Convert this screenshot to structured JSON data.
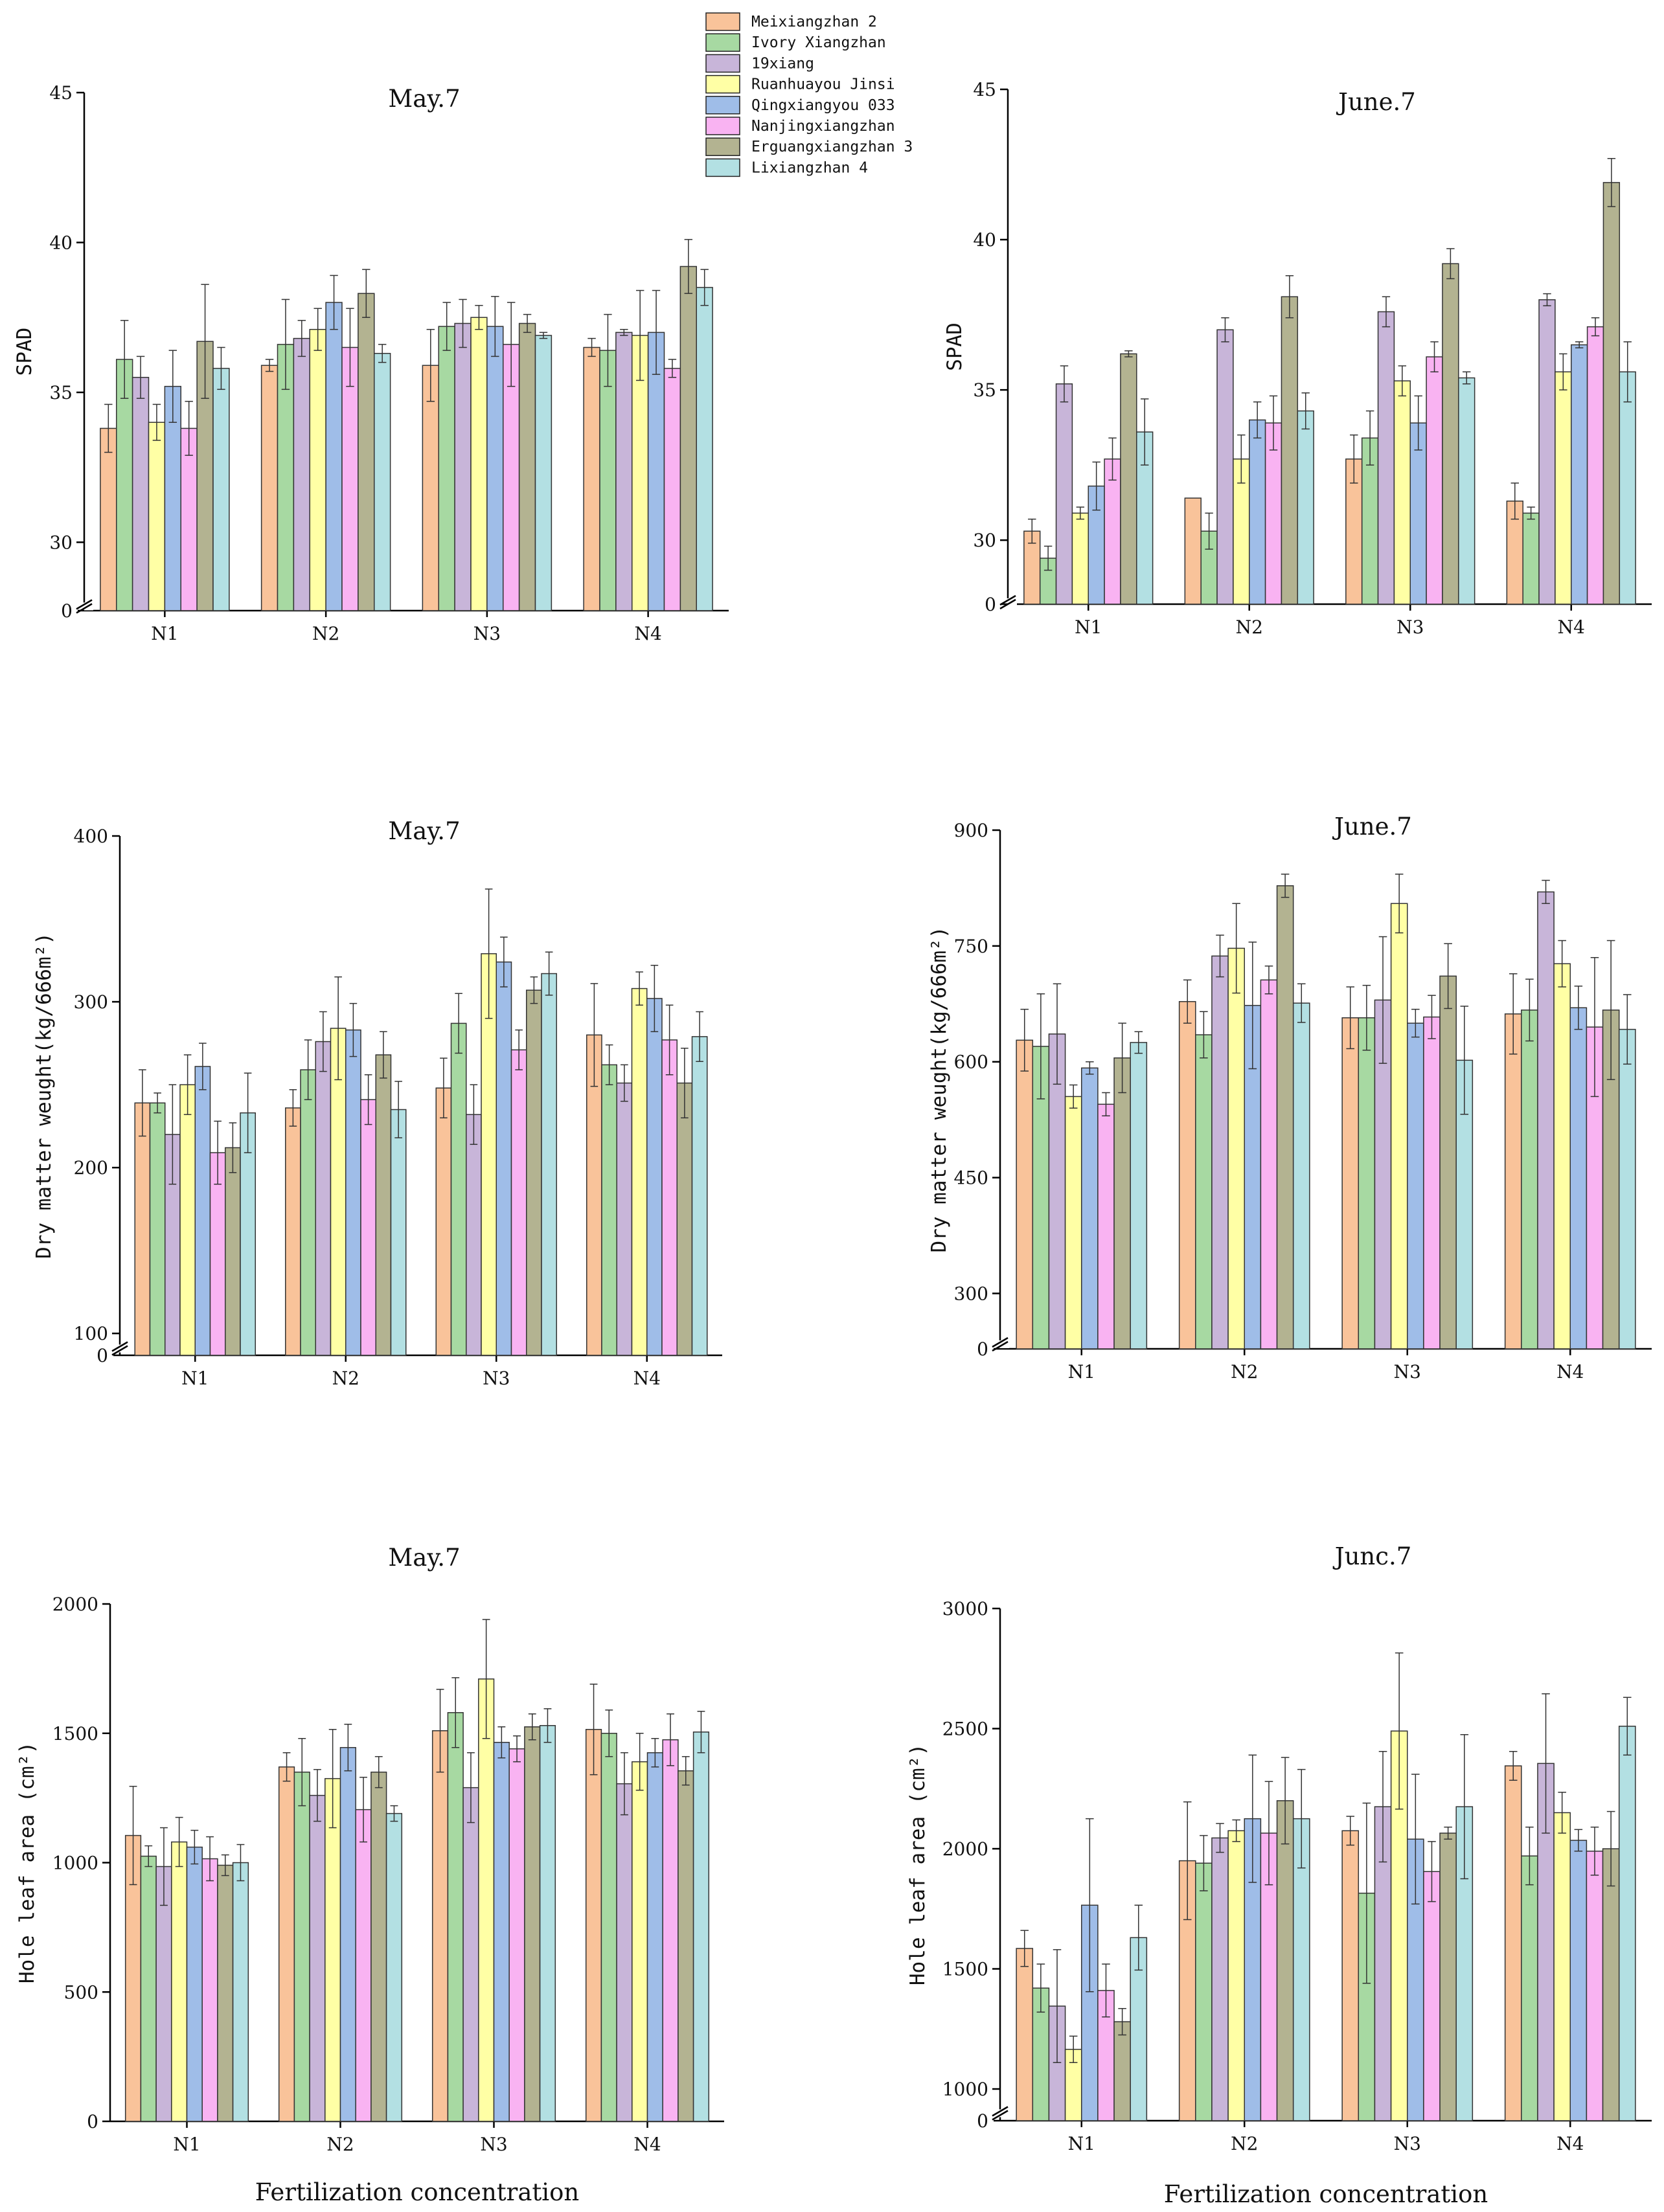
{
  "legend": [
    {
      "name": "Meixiangzhan 2",
      "color": "#f9c39a"
    },
    {
      "name": "Ivory Xiangzhan",
      "color": "#a7d9a2"
    },
    {
      "name": "19xiang",
      "color": "#c8b5d9"
    },
    {
      "name": "Ruanhuayou Jinsi",
      "color": "#ffffa5"
    },
    {
      "name": "Qingxiangyou 033",
      "color": "#9fbde8"
    },
    {
      "name": "Nanjingxiangzhan",
      "color": "#f9b3f2"
    },
    {
      "name": "Erguangxiangzhan 3",
      "color": "#b3b391"
    },
    {
      "name": "Lixiangzhan 4",
      "color": "#b3e0e3"
    }
  ],
  "chart_data": [
    {
      "type": "bar",
      "title": "May.7",
      "ylabel": "SPAD",
      "xlabel": "",
      "categories": [
        "N1",
        "N2",
        "N3",
        "N4"
      ],
      "ylim": [
        28,
        45
      ],
      "y_break": true,
      "yticks": [
        30,
        35,
        40,
        45
      ],
      "tick_labels": [
        "30",
        "35",
        "40",
        "45"
      ],
      "zero_label": "0",
      "series": [
        {
          "name": "Meixiangzhan 2",
          "values": [
            33.8,
            35.9,
            35.9,
            36.5
          ],
          "errors": [
            0.8,
            0.2,
            1.2,
            0.3
          ]
        },
        {
          "name": "Ivory Xiangzhan",
          "values": [
            36.1,
            36.6,
            37.2,
            36.4
          ],
          "errors": [
            1.3,
            1.5,
            0.8,
            1.2
          ]
        },
        {
          "name": "19xiang",
          "values": [
            35.5,
            36.8,
            37.3,
            37.0
          ],
          "errors": [
            0.7,
            0.6,
            0.8,
            0.1
          ]
        },
        {
          "name": "Ruanhuayou Jinsi",
          "values": [
            34.0,
            37.1,
            37.5,
            36.9
          ],
          "errors": [
            0.6,
            0.7,
            0.4,
            1.5
          ]
        },
        {
          "name": "Qingxiangyou 033",
          "values": [
            35.2,
            38.0,
            37.2,
            37.0
          ],
          "errors": [
            1.2,
            0.9,
            1.0,
            1.4
          ]
        },
        {
          "name": "Nanjingxiangzhan",
          "values": [
            33.8,
            36.5,
            36.6,
            35.8
          ],
          "errors": [
            0.9,
            1.3,
            1.4,
            0.3
          ]
        },
        {
          "name": "Erguangxiangzhan 3",
          "values": [
            36.7,
            38.3,
            37.3,
            39.2
          ],
          "errors": [
            1.9,
            0.8,
            0.3,
            0.9
          ]
        },
        {
          "name": "Lixiangzhan 4",
          "values": [
            35.8,
            36.3,
            36.9,
            38.5
          ],
          "errors": [
            0.7,
            0.3,
            0.1,
            0.6
          ]
        }
      ]
    },
    {
      "type": "bar",
      "title": "June.7",
      "ylabel": "SPAD",
      "xlabel": "",
      "categories": [
        "N1",
        "N2",
        "N3",
        "N4"
      ],
      "ylim": [
        28,
        45
      ],
      "y_break": true,
      "yticks": [
        30,
        35,
        40,
        45
      ],
      "tick_labels": [
        "30",
        "35",
        "40",
        "45"
      ],
      "zero_label": "0",
      "series": [
        {
          "name": "Meixiangzhan 2",
          "values": [
            30.3,
            31.4,
            32.7,
            31.3
          ],
          "errors": [
            0.4,
            0.0,
            0.8,
            0.6
          ]
        },
        {
          "name": "Ivory Xiangzhan",
          "values": [
            29.4,
            30.3,
            33.4,
            30.9
          ],
          "errors": [
            0.4,
            0.6,
            0.9,
            0.2
          ]
        },
        {
          "name": "19xiang",
          "values": [
            35.2,
            37.0,
            37.6,
            38.0
          ],
          "errors": [
            0.6,
            0.4,
            0.5,
            0.2
          ]
        },
        {
          "name": "Ruanhuayou Jinsi",
          "values": [
            30.9,
            32.7,
            35.3,
            35.6
          ],
          "errors": [
            0.2,
            0.8,
            0.5,
            0.6
          ]
        },
        {
          "name": "Qingxiangyou 033",
          "values": [
            31.8,
            34.0,
            33.9,
            36.5
          ],
          "errors": [
            0.8,
            0.6,
            0.9,
            0.1
          ]
        },
        {
          "name": "Nanjingxiangzhan",
          "values": [
            32.7,
            33.9,
            36.1,
            37.1
          ],
          "errors": [
            0.7,
            0.9,
            0.5,
            0.3
          ]
        },
        {
          "name": "Erguangxiangzhan 3",
          "values": [
            36.2,
            38.1,
            39.2,
            41.9
          ],
          "errors": [
            0.1,
            0.7,
            0.5,
            0.8
          ]
        },
        {
          "name": "Lixiangzhan 4",
          "values": [
            33.6,
            34.3,
            35.4,
            35.6
          ],
          "errors": [
            1.1,
            0.6,
            0.2,
            1.0
          ]
        }
      ]
    },
    {
      "type": "bar",
      "title": "May.7",
      "ylabel": "Dry matter weught(kg/666m²)",
      "xlabel": "",
      "categories": [
        "N1",
        "N2",
        "N3",
        "N4"
      ],
      "ylim": [
        95,
        400
      ],
      "y_break": true,
      "yticks": [
        100,
        200,
        300,
        400
      ],
      "tick_labels": [
        "100",
        "200",
        "300",
        "400"
      ],
      "zero_label": "0",
      "series": [
        {
          "name": "Meixiangzhan 2",
          "values": [
            239,
            236,
            248,
            280
          ],
          "errors": [
            20,
            11,
            18,
            31
          ]
        },
        {
          "name": "Ivory Xiangzhan",
          "values": [
            239,
            259,
            287,
            262
          ],
          "errors": [
            6,
            18,
            18,
            12
          ]
        },
        {
          "name": "19xiang",
          "values": [
            220,
            276,
            232,
            251
          ],
          "errors": [
            30,
            18,
            18,
            11
          ]
        },
        {
          "name": "Ruanhuayou Jinsi",
          "values": [
            250,
            284,
            329,
            308
          ],
          "errors": [
            18,
            31,
            39,
            10
          ]
        },
        {
          "name": "Qingxiangyou 033",
          "values": [
            261,
            283,
            324,
            302
          ],
          "errors": [
            14,
            16,
            15,
            20
          ]
        },
        {
          "name": "Nanjingxiangzhan",
          "values": [
            209,
            241,
            271,
            277
          ],
          "errors": [
            19,
            15,
            12,
            21
          ]
        },
        {
          "name": "Erguangxiangzhan 3",
          "values": [
            212,
            268,
            307,
            251
          ],
          "errors": [
            15,
            14,
            8,
            21
          ]
        },
        {
          "name": "Lixiangzhan 4",
          "values": [
            233,
            235,
            317,
            279
          ],
          "errors": [
            24,
            17,
            13,
            15
          ]
        }
      ]
    },
    {
      "type": "bar",
      "title": "June.7",
      "ylabel": "Dry matter weught(kg/666m²)",
      "xlabel": "",
      "categories": [
        "N1",
        "N2",
        "N3",
        "N4"
      ],
      "ylim": [
        240,
        900
      ],
      "y_break": true,
      "yticks": [
        300,
        450,
        600,
        750,
        900
      ],
      "tick_labels": [
        "300",
        "450",
        "600",
        "750",
        "900"
      ],
      "zero_label": "0",
      "series": [
        {
          "name": "Meixiangzhan 2",
          "values": [
            628,
            678,
            657,
            662
          ],
          "errors": [
            40,
            28,
            40,
            52
          ]
        },
        {
          "name": "Ivory Xiangzhan",
          "values": [
            620,
            635,
            657,
            667
          ],
          "errors": [
            68,
            30,
            42,
            40
          ]
        },
        {
          "name": "19xiang",
          "values": [
            636,
            737,
            680,
            820
          ],
          "errors": [
            65,
            27,
            82,
            15
          ]
        },
        {
          "name": "Ruanhuayou Jinsi",
          "values": [
            555,
            747,
            805,
            727
          ],
          "errors": [
            15,
            58,
            38,
            30
          ]
        },
        {
          "name": "Qingxiangyou 033",
          "values": [
            592,
            673,
            650,
            670
          ],
          "errors": [
            8,
            82,
            18,
            28
          ]
        },
        {
          "name": "Nanjingxiangzhan",
          "values": [
            545,
            706,
            658,
            645
          ],
          "errors": [
            15,
            18,
            28,
            90
          ]
        },
        {
          "name": "Erguangxiangzhan 3",
          "values": [
            605,
            828,
            711,
            667
          ],
          "errors": [
            45,
            15,
            42,
            90
          ]
        },
        {
          "name": "Lixiangzhan 4",
          "values": [
            625,
            676,
            602,
            642
          ],
          "errors": [
            14,
            25,
            70,
            45
          ]
        }
      ]
    },
    {
      "type": "bar",
      "title": "May.7",
      "ylabel": "Hole leaf area (cm²)",
      "xlabel": "Fertilization concentration",
      "categories": [
        "N1",
        "N2",
        "N3",
        "N4"
      ],
      "ylim": [
        0,
        2000
      ],
      "y_break": false,
      "yticks": [
        0,
        500,
        1000,
        1500,
        2000
      ],
      "tick_labels": [
        "0",
        "500",
        "1000",
        "1500",
        "2000"
      ],
      "zero_label": "",
      "series": [
        {
          "name": "Meixiangzhan 2",
          "values": [
            1105,
            1370,
            1510,
            1515
          ],
          "errors": [
            190,
            55,
            160,
            175
          ]
        },
        {
          "name": "Ivory Xiangzhan",
          "values": [
            1025,
            1350,
            1580,
            1500
          ],
          "errors": [
            40,
            130,
            135,
            90
          ]
        },
        {
          "name": "19xiang",
          "values": [
            985,
            1260,
            1290,
            1305
          ],
          "errors": [
            150,
            100,
            135,
            120
          ]
        },
        {
          "name": "Ruanhuayou Jinsi",
          "values": [
            1080,
            1325,
            1710,
            1390
          ],
          "errors": [
            95,
            190,
            230,
            110
          ]
        },
        {
          "name": "Qingxiangyou 033",
          "values": [
            1060,
            1445,
            1465,
            1425
          ],
          "errors": [
            65,
            90,
            60,
            55
          ]
        },
        {
          "name": "Nanjingxiangzhan",
          "values": [
            1015,
            1205,
            1440,
            1475
          ],
          "errors": [
            85,
            125,
            50,
            100
          ]
        },
        {
          "name": "Erguangxiangzhan 3",
          "values": [
            990,
            1350,
            1525,
            1355
          ],
          "errors": [
            40,
            60,
            50,
            55
          ]
        },
        {
          "name": "Lixiangzhan 4",
          "values": [
            1000,
            1190,
            1530,
            1505
          ],
          "errors": [
            70,
            30,
            65,
            80
          ]
        }
      ]
    },
    {
      "type": "bar",
      "title": "Junc.7",
      "ylabel": "Hole leaf area (cm²)",
      "xlabel": "Fertilization concentration",
      "categories": [
        "N1",
        "N2",
        "N3",
        "N4"
      ],
      "ylim": [
        930,
        3000
      ],
      "y_break": true,
      "yticks": [
        1000,
        1500,
        2000,
        2500,
        3000
      ],
      "tick_labels": [
        "1000",
        "1500",
        "2000",
        "2500",
        "3000"
      ],
      "zero_label": "0",
      "series": [
        {
          "name": "Meixiangzhan 2",
          "values": [
            1585,
            1950,
            2075,
            2345
          ],
          "errors": [
            75,
            245,
            60,
            60
          ]
        },
        {
          "name": "Ivory Xiangzhan",
          "values": [
            1420,
            1940,
            1815,
            1970
          ],
          "errors": [
            100,
            115,
            375,
            120
          ]
        },
        {
          "name": "19xiang",
          "values": [
            1345,
            2045,
            2175,
            2355
          ],
          "errors": [
            235,
            60,
            230,
            290
          ]
        },
        {
          "name": "Ruanhuayou Jinsi",
          "values": [
            1165,
            2075,
            2490,
            2150
          ],
          "errors": [
            55,
            45,
            325,
            85
          ]
        },
        {
          "name": "Qingxiangyou 033",
          "values": [
            1765,
            2125,
            2040,
            2035
          ],
          "errors": [
            360,
            265,
            270,
            45
          ]
        },
        {
          "name": "Nanjingxiangzhan",
          "values": [
            1410,
            2065,
            1905,
            1990
          ],
          "errors": [
            110,
            215,
            125,
            100
          ]
        },
        {
          "name": "Erguangxiangzhan 3",
          "values": [
            1280,
            2200,
            2065,
            2000
          ],
          "errors": [
            55,
            180,
            25,
            155
          ]
        },
        {
          "name": "Lixiangzhan 4",
          "values": [
            1630,
            2125,
            2175,
            2510
          ],
          "errors": [
            135,
            205,
            300,
            120
          ]
        }
      ]
    }
  ]
}
